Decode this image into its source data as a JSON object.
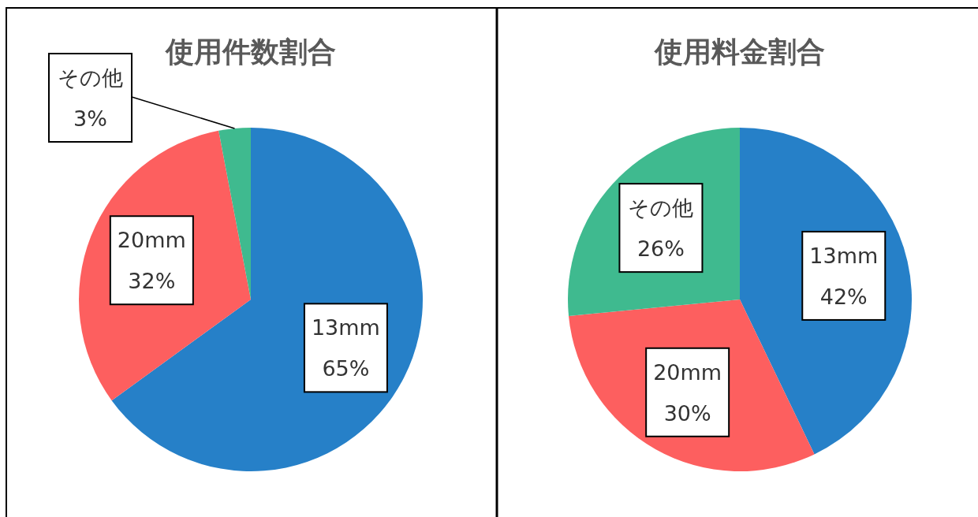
{
  "chart_data": [
    {
      "type": "pie",
      "title": "使用件数割合",
      "categories": [
        "13mm",
        "20mm",
        "その他"
      ],
      "values": [
        65,
        32,
        3
      ],
      "colors": [
        "#2680c8",
        "#fd5f5f",
        "#3fba8f"
      ],
      "value_labels": [
        "65%",
        "32%",
        "3%"
      ]
    },
    {
      "type": "pie",
      "title": "使用料金割合",
      "categories": [
        "13mm",
        "20mm",
        "その他"
      ],
      "values": [
        42,
        30,
        26
      ],
      "colors": [
        "#2680c8",
        "#fd5f5f",
        "#3fba8f"
      ],
      "value_labels": [
        "42%",
        "30%",
        "26%"
      ]
    }
  ]
}
